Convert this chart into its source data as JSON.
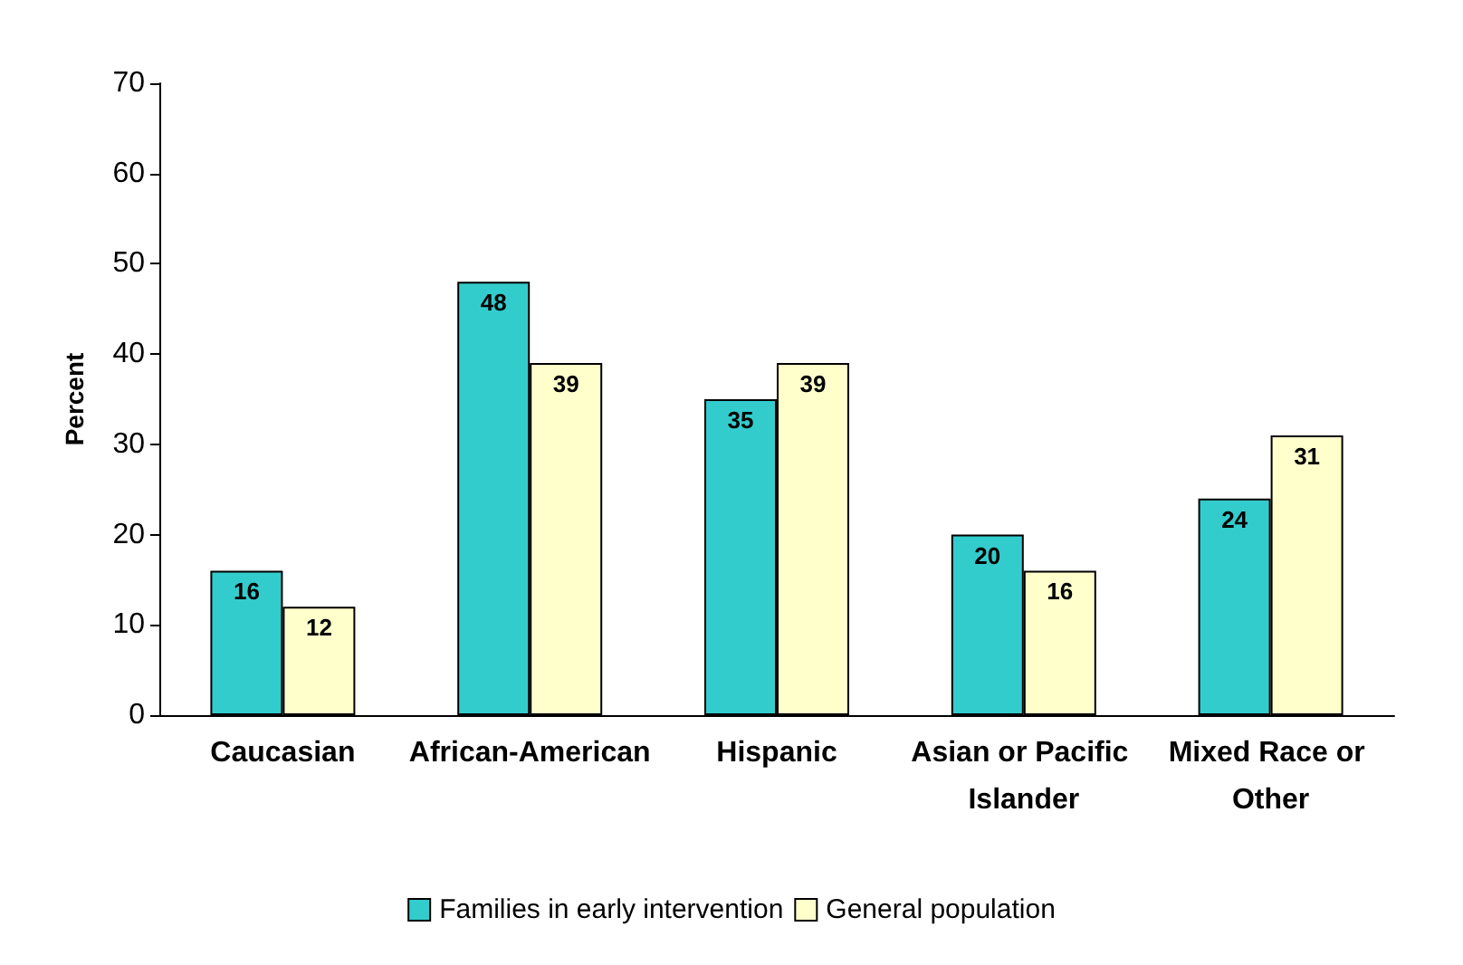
{
  "chart_data": {
    "type": "bar",
    "ylabel": "Percent",
    "categories": [
      "Caucasian",
      "African-American",
      "Hispanic",
      "Asian or Pacific Islander",
      "Mixed Race or Other"
    ],
    "series": [
      {
        "name": "Families in early intervention",
        "color": "#33cccc",
        "values": [
          16,
          48,
          35,
          20,
          24
        ]
      },
      {
        "name": "General population",
        "color": "#ffffcc",
        "values": [
          12,
          39,
          39,
          16,
          31
        ]
      }
    ],
    "ylim": [
      0,
      70
    ],
    "yticks": [
      0,
      10,
      20,
      30,
      40,
      50,
      60,
      70
    ],
    "grid": false,
    "legend": "bottom",
    "data_labels": true
  }
}
